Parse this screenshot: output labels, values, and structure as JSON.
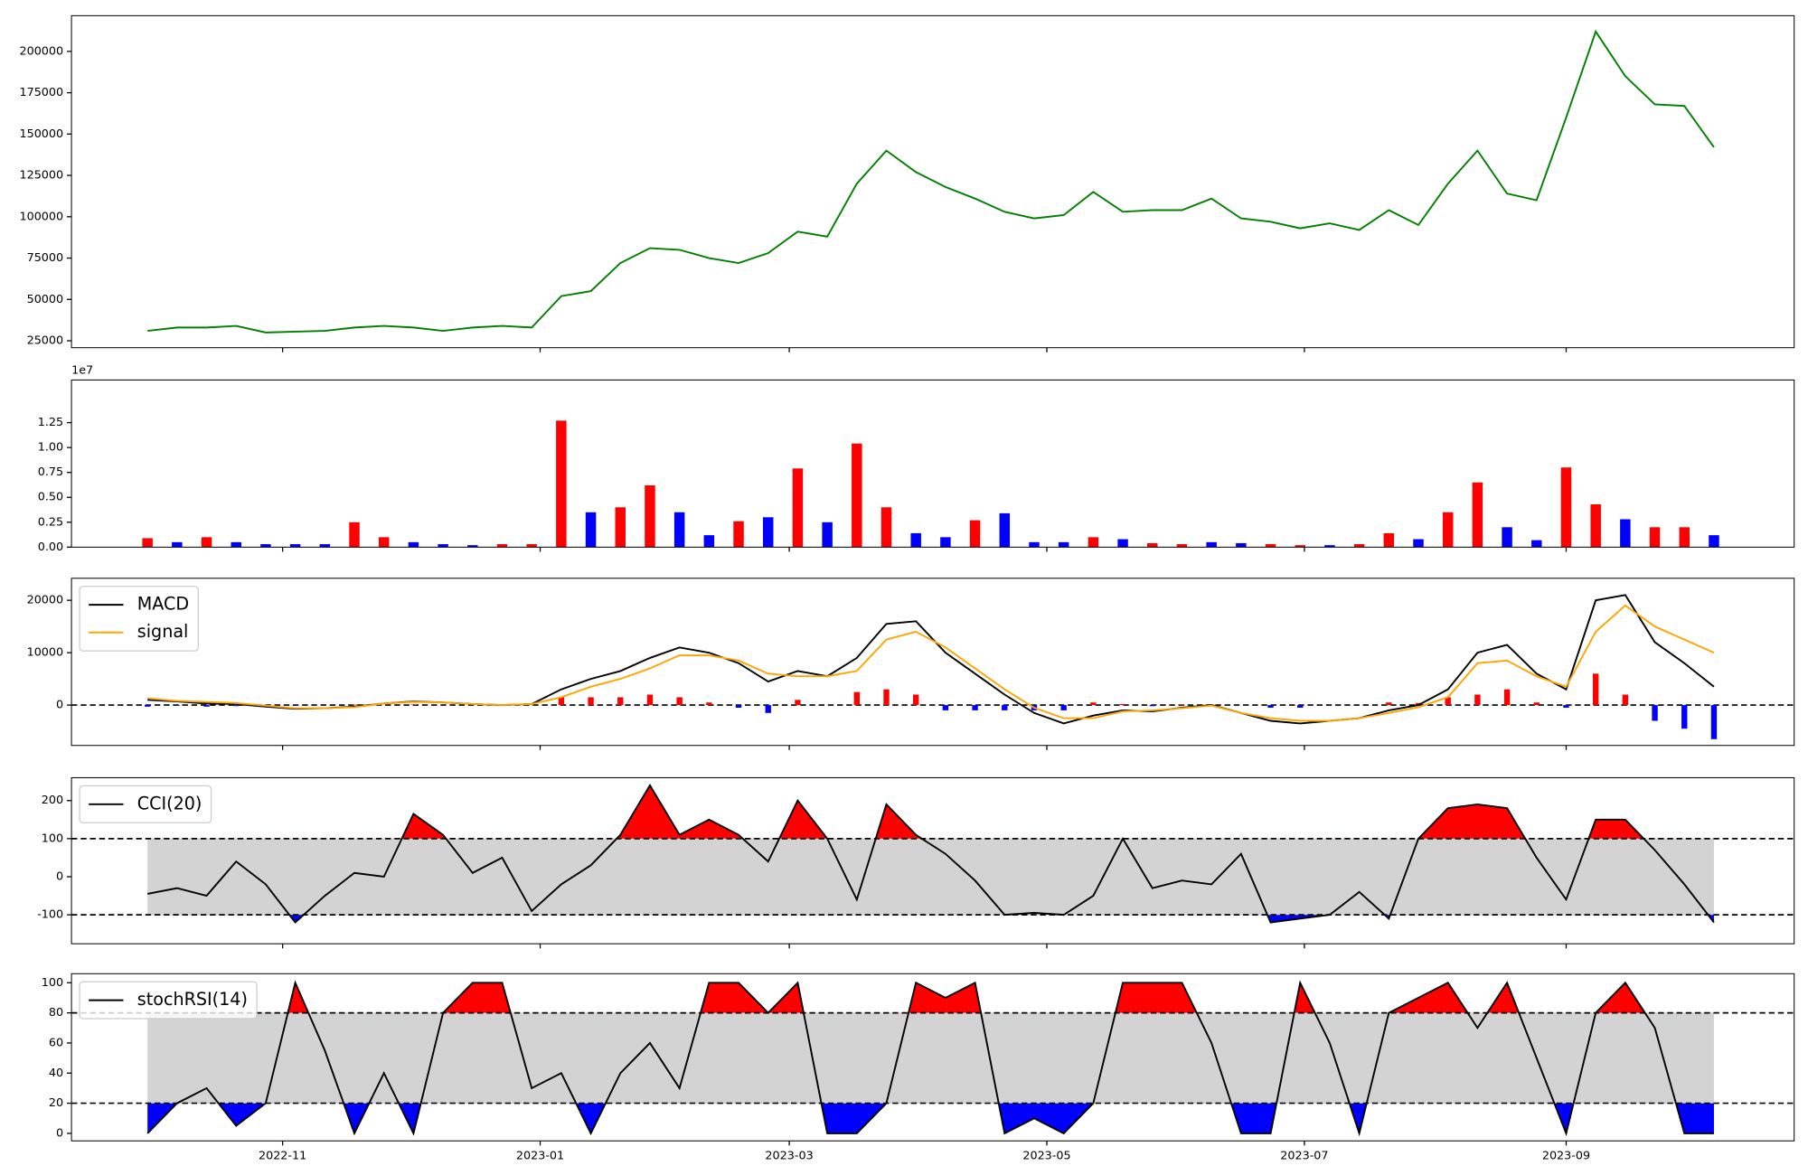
{
  "chart_data": [
    {
      "type": "line",
      "xlim": [
        -50,
        358
      ],
      "ylim": [
        20800,
        221600
      ],
      "yticks": [
        25000,
        50000,
        75000,
        100000,
        125000,
        150000,
        175000,
        200000
      ],
      "x": [
        -32,
        -25,
        -18,
        -11,
        -4,
        3,
        10,
        17,
        24,
        31,
        38,
        45,
        52,
        59,
        66,
        73,
        80,
        87,
        94,
        101,
        108,
        115,
        122,
        129,
        136,
        143,
        150,
        157,
        164,
        171,
        178,
        185,
        192,
        199,
        206,
        213,
        220,
        227,
        234,
        241,
        248,
        255,
        262,
        269,
        276,
        283,
        290,
        297,
        304,
        311,
        318,
        325,
        332,
        339
      ],
      "series": [
        {
          "color": "#008000",
          "values": [
            31000,
            33000,
            33000,
            34000,
            30000,
            30500,
            31000,
            33000,
            34000,
            33000,
            31000,
            33000,
            34000,
            33000,
            52000,
            55000,
            72000,
            81000,
            80000,
            75000,
            72000,
            78000,
            91000,
            88000,
            120000,
            140000,
            127000,
            118000,
            111000,
            103000,
            99000,
            101000,
            115000,
            103000,
            104000,
            104000,
            111000,
            99000,
            97000,
            93000,
            96000,
            92000,
            104000,
            95000,
            120000,
            140000,
            114000,
            110000,
            160000,
            212000,
            185000,
            168000,
            167000,
            142000
          ]
        }
      ]
    },
    {
      "type": "bar",
      "xlim": [
        -50,
        358
      ],
      "ylim": [
        0,
        1.678
      ],
      "offset_text": "1e7",
      "yticks": [
        {
          "value": 0,
          "label": "0.00"
        },
        0.25,
        {
          "value": 0.5,
          "label": "0.50"
        },
        0.75,
        {
          "value": 1,
          "label": "1.00"
        },
        1.25
      ],
      "x": [
        -32,
        -25,
        -18,
        -11,
        -4,
        3,
        10,
        17,
        24,
        31,
        38,
        45,
        52,
        59,
        66,
        73,
        80,
        87,
        94,
        101,
        108,
        115,
        122,
        129,
        136,
        143,
        150,
        157,
        164,
        171,
        178,
        185,
        192,
        199,
        206,
        213,
        220,
        227,
        234,
        241,
        248,
        255,
        262,
        269,
        276,
        283,
        290,
        297,
        304,
        311,
        318,
        325,
        332,
        339
      ],
      "values": [
        0.09,
        0.05,
        0.1,
        0.05,
        0.03,
        0.03,
        0.03,
        0.25,
        0.1,
        0.05,
        0.03,
        0.02,
        0.03,
        0.03,
        1.27,
        0.35,
        0.4,
        0.62,
        0.35,
        0.12,
        0.26,
        0.3,
        0.79,
        0.25,
        1.04,
        0.4,
        0.14,
        0.1,
        0.27,
        0.34,
        0.05,
        0.05,
        0.1,
        0.08,
        0.04,
        0.03,
        0.05,
        0.04,
        0.03,
        0.02,
        0.02,
        0.03,
        0.14,
        0.08,
        0.35,
        0.65,
        0.2,
        0.07,
        0.8,
        0.43,
        0.28,
        0.2,
        0.2,
        0.12
      ],
      "colors": [
        "red",
        "blue",
        "red",
        "blue",
        "blue",
        "blue",
        "blue",
        "red",
        "red",
        "blue",
        "blue",
        "blue",
        "red",
        "red",
        "red",
        "blue",
        "red",
        "red",
        "blue",
        "blue",
        "red",
        "blue",
        "red",
        "blue",
        "red",
        "red",
        "blue",
        "blue",
        "red",
        "blue",
        "blue",
        "blue",
        "red",
        "blue",
        "red",
        "red",
        "blue",
        "blue",
        "red",
        "red",
        "blue",
        "red",
        "red",
        "blue",
        "red",
        "red",
        "blue",
        "blue",
        "red",
        "red",
        "blue",
        "red",
        "red",
        "blue"
      ]
    },
    {
      "type": "line",
      "xlim": [
        -50,
        358
      ],
      "ylim": [
        -7700,
        24200
      ],
      "yticks": [
        0,
        10000,
        20000
      ],
      "legend": "upper left",
      "zero_line": "dashed",
      "x": [
        -32,
        -25,
        -18,
        -11,
        -4,
        3,
        10,
        17,
        24,
        31,
        38,
        45,
        52,
        59,
        66,
        73,
        80,
        87,
        94,
        101,
        108,
        115,
        122,
        129,
        136,
        143,
        150,
        157,
        164,
        171,
        178,
        185,
        192,
        199,
        206,
        213,
        220,
        227,
        234,
        241,
        248,
        255,
        262,
        269,
        276,
        283,
        290,
        297,
        304,
        311,
        318,
        325,
        332,
        339
      ],
      "series": [
        {
          "name": "MACD",
          "color": "#000000",
          "values": [
            1000,
            700,
            300,
            200,
            -300,
            -700,
            -600,
            -300,
            300,
            700,
            500,
            200,
            0,
            200,
            3000,
            5000,
            6500,
            9000,
            11000,
            10000,
            8000,
            4500,
            6500,
            5500,
            9000,
            15500,
            16000,
            10000,
            6000,
            2000,
            -1500,
            -3500,
            -2000,
            -1000,
            -1200,
            -500,
            0,
            -1500,
            -3000,
            -3500,
            -3000,
            -2500,
            -1000,
            0,
            3000,
            10000,
            11500,
            6000,
            3000,
            20000,
            21000,
            12000,
            8000,
            3500
          ]
        },
        {
          "name": "signal",
          "color": "#ffa500",
          "values": [
            1300,
            800,
            600,
            400,
            -100,
            -600,
            -600,
            -400,
            300,
            600,
            500,
            200,
            0,
            200,
            1500,
            3500,
            5000,
            7000,
            9500,
            9500,
            8500,
            6000,
            5500,
            5500,
            6500,
            12500,
            14000,
            11000,
            7000,
            3000,
            -500,
            -2500,
            -2500,
            -1200,
            -1000,
            -600,
            -100,
            -1500,
            -2500,
            -3000,
            -3000,
            -2500,
            -1500,
            -400,
            1500,
            8000,
            8500,
            5500,
            3500,
            14000,
            19000,
            15000,
            12500,
            10000
          ]
        }
      ],
      "bars": {
        "positive_color": "red",
        "negative_color": "blue",
        "values": [
          -300,
          -100,
          -300,
          -200,
          -200,
          -100,
          0,
          100,
          0,
          100,
          0,
          0,
          0,
          0,
          1500,
          1500,
          1500,
          2000,
          1500,
          500,
          -500,
          -1500,
          1000,
          0,
          2500,
          3000,
          2000,
          -1000,
          -1000,
          -1000,
          -1000,
          -1000,
          500,
          200,
          -200,
          100,
          100,
          0,
          -500,
          -500,
          0,
          0,
          500,
          400,
          1500,
          2000,
          3000,
          500,
          -500,
          6000,
          2000,
          -3000,
          -4500,
          -6500
        ]
      }
    },
    {
      "type": "band",
      "xlim": [
        -50,
        358
      ],
      "ylim": [
        -176,
        260
      ],
      "yticks": [
        -100,
        0,
        100,
        200
      ],
      "legend": "upper left",
      "thresholds": [
        -100,
        100
      ],
      "band_color": "#d3d3d3",
      "above_color": "red",
      "below_color": "blue",
      "x": [
        -32,
        -25,
        -18,
        -11,
        -4,
        3,
        10,
        17,
        24,
        31,
        38,
        45,
        52,
        59,
        66,
        73,
        80,
        87,
        94,
        101,
        108,
        115,
        122,
        129,
        136,
        143,
        150,
        157,
        164,
        171,
        178,
        185,
        192,
        199,
        206,
        213,
        220,
        227,
        234,
        241,
        248,
        255,
        262,
        269,
        276,
        283,
        290,
        297,
        304,
        311,
        318,
        325,
        332,
        339
      ],
      "series": [
        {
          "name": "CCI(20)",
          "color": "#000000",
          "values": [
            -45,
            -30,
            -50,
            40,
            -20,
            -120,
            -50,
            10,
            0,
            165,
            110,
            10,
            50,
            -90,
            -20,
            30,
            110,
            240,
            110,
            150,
            110,
            40,
            200,
            100,
            -60,
            190,
            110,
            60,
            -10,
            -100,
            -95,
            -100,
            -50,
            100,
            -30,
            -10,
            -20,
            60,
            -120,
            -110,
            -100,
            -40,
            -110,
            100,
            180,
            190,
            180,
            50,
            -60,
            150,
            150,
            70,
            -20,
            -120
          ]
        }
      ]
    },
    {
      "type": "band",
      "xlim": [
        -50,
        358
      ],
      "ylim": [
        -5,
        106
      ],
      "yticks": [
        0,
        20,
        40,
        60,
        80,
        100
      ],
      "legend": "upper left",
      "thresholds": [
        20,
        80
      ],
      "band_color": "#d3d3d3",
      "above_color": "red",
      "below_color": "blue",
      "xticks": [
        {
          "value": 0,
          "label": "2022-11"
        },
        {
          "value": 61,
          "label": "2023-01"
        },
        {
          "value": 120,
          "label": "2023-03"
        },
        {
          "value": 181,
          "label": "2023-05"
        },
        {
          "value": 242,
          "label": "2023-07"
        },
        {
          "value": 304,
          "label": "2023-09"
        }
      ],
      "x": [
        -32,
        -25,
        -18,
        -11,
        -4,
        3,
        10,
        17,
        24,
        31,
        38,
        45,
        52,
        59,
        66,
        73,
        80,
        87,
        94,
        101,
        108,
        115,
        122,
        129,
        136,
        143,
        150,
        157,
        164,
        171,
        178,
        185,
        192,
        199,
        206,
        213,
        220,
        227,
        234,
        241,
        248,
        255,
        262,
        269,
        276,
        283,
        290,
        297,
        304,
        311,
        318,
        325,
        332,
        339
      ],
      "series": [
        {
          "name": "stochRSI(14)",
          "color": "#000000",
          "values": [
            0,
            20,
            30,
            5,
            20,
            100,
            55,
            0,
            40,
            0,
            80,
            100,
            100,
            30,
            40,
            0,
            40,
            60,
            30,
            100,
            100,
            80,
            100,
            0,
            0,
            20,
            100,
            90,
            100,
            0,
            10,
            0,
            20,
            100,
            100,
            100,
            60,
            0,
            0,
            100,
            60,
            0,
            80,
            90,
            100,
            70,
            100,
            50,
            0,
            80,
            100,
            70,
            0,
            0
          ]
        }
      ]
    }
  ]
}
